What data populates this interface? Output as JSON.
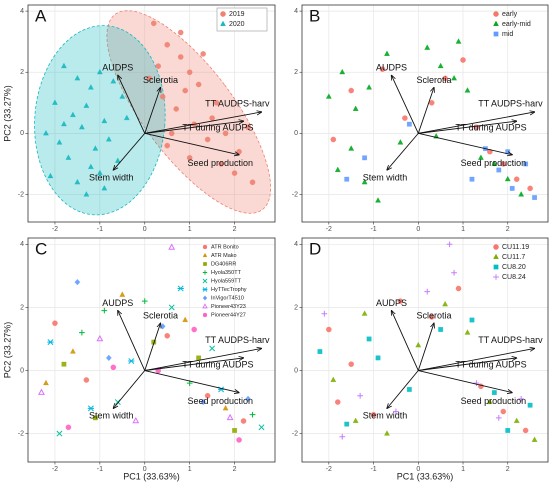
{
  "chart_data": [
    {
      "type": "scatter",
      "label": "A",
      "ylabel": "PC2 (33.27%)",
      "xlim": [
        -2.6,
        2.9
      ],
      "ylim": [
        -2.9,
        4.2
      ],
      "xticks": [
        -2,
        -1,
        0,
        1,
        2
      ],
      "yticks": [
        -2,
        0,
        2,
        4
      ],
      "grid": true,
      "legend": "top-right",
      "legend_box": true,
      "series": [
        {
          "name": "2019",
          "color": "#f08070",
          "marker": "circle",
          "x": [
            0.2,
            0.5,
            0.8,
            1.0,
            1.2,
            0.4,
            0.7,
            1.5,
            1.8,
            2.1,
            0.3,
            0.9,
            1.1,
            1.4,
            0.6,
            1.7,
            2.0,
            2.4,
            0.1,
            0.8,
            1.3,
            1.6,
            0.5,
            1.0,
            2.3
          ],
          "y": [
            3.6,
            2.9,
            2.5,
            2.0,
            1.6,
            1.2,
            0.8,
            0.5,
            0.0,
            -0.6,
            2.2,
            1.4,
            0.3,
            -0.2,
            0.0,
            -1.0,
            -1.3,
            -1.6,
            1.8,
            3.3,
            2.6,
            1.0,
            -0.4,
            -0.8,
            0.2
          ],
          "ellipse": {
            "cx": 0.98,
            "cy": 0.7,
            "rx": 1.0,
            "ry": 4.0,
            "angle": -37
          }
        },
        {
          "name": "2020",
          "color": "#16b8c0",
          "marker": "triangle",
          "x": [
            -1.8,
            -1.5,
            -1.2,
            -1.0,
            -0.7,
            -2.0,
            -1.6,
            -1.3,
            -0.9,
            -0.5,
            -2.2,
            -1.9,
            -1.4,
            -1.1,
            -0.8,
            -1.7,
            -1.2,
            -0.6,
            -2.1,
            -1.5,
            -1.0,
            -0.4,
            -1.3,
            -1.8,
            -0.9
          ],
          "y": [
            2.2,
            1.8,
            1.5,
            2.0,
            1.7,
            1.0,
            0.6,
            0.9,
            0.4,
            1.2,
            0.0,
            -0.3,
            0.2,
            -0.5,
            -0.2,
            -0.8,
            -1.1,
            -0.9,
            -1.4,
            -1.6,
            -1.3,
            0.5,
            -2.0,
            0.3,
            -1.8
          ],
          "ellipse": {
            "cx": -1.0,
            "cy": 0.43,
            "rx": 1.45,
            "ry": 3.1,
            "angle": 4
          }
        }
      ],
      "arrows": [
        {
          "label": "AUDPS",
          "x": -0.6,
          "y": 1.9
        },
        {
          "label": "Sclerotia",
          "x": 0.35,
          "y": 1.5
        },
        {
          "label": "TT AUDPS-harv",
          "x": 2.6,
          "y": 0.7
        },
        {
          "label": "TT during AUDPS",
          "x": 2.2,
          "y": 0.4
        },
        {
          "label": "Seed production",
          "x": 2.1,
          "y": -0.7
        },
        {
          "label": "Stem width",
          "x": -0.7,
          "y": -1.2
        }
      ]
    },
    {
      "type": "scatter",
      "label": "B",
      "xlim": [
        -2.6,
        2.9
      ],
      "ylim": [
        -2.9,
        4.2
      ],
      "xticks": [
        -2,
        -1,
        0,
        1,
        2
      ],
      "yticks": [
        -2,
        0,
        2,
        4
      ],
      "grid": true,
      "legend": "top-right",
      "legend_box": false,
      "series": [
        {
          "name": "early",
          "color": "#f8766d",
          "marker": "circle",
          "x": [
            -1.5,
            -0.8,
            0.3,
            1.0,
            1.6,
            2.2,
            -1.9,
            0.6,
            1.9,
            2.5,
            -0.3,
            1.3
          ],
          "y": [
            1.4,
            2.1,
            1.0,
            2.4,
            -0.6,
            -1.5,
            -0.2,
            1.8,
            -1.0,
            -1.8,
            0.5,
            0.2
          ]
        },
        {
          "name": "early-mid",
          "color": "#00a81e",
          "marker": "triangle",
          "x": [
            -2.0,
            -1.7,
            -1.4,
            -1.1,
            -0.7,
            -0.4,
            0.2,
            0.5,
            0.8,
            1.1,
            1.4,
            1.7,
            2.0,
            2.3,
            -1.8,
            -1.2,
            -0.9,
            -1.5,
            0.9,
            0.4
          ],
          "y": [
            1.2,
            2.0,
            0.8,
            1.5,
            2.6,
            -0.3,
            2.8,
            2.2,
            1.8,
            1.4,
            -0.8,
            -1.0,
            -1.5,
            -2.0,
            -1.2,
            -1.6,
            -2.2,
            -0.5,
            3.0,
            -0.1
          ]
        },
        {
          "name": "mid",
          "color": "#619cff",
          "marker": "square",
          "x": [
            -1.6,
            -1.2,
            1.5,
            1.8,
            2.1,
            2.4,
            2.6,
            -0.2,
            1.2,
            2.0
          ],
          "y": [
            -1.5,
            -0.8,
            -0.5,
            -1.2,
            -1.8,
            -1.0,
            -2.1,
            0.3,
            -1.5,
            -0.6
          ]
        }
      ],
      "arrows": [
        {
          "label": "AUDPS",
          "x": -0.6,
          "y": 1.9
        },
        {
          "label": "Sclerotia",
          "x": 0.35,
          "y": 1.5
        },
        {
          "label": "TT AUDPS-harv",
          "x": 2.6,
          "y": 0.7
        },
        {
          "label": "TT during AUDPS",
          "x": 2.2,
          "y": 0.4
        },
        {
          "label": "Seed production",
          "x": 2.1,
          "y": -0.7
        },
        {
          "label": "Stem width",
          "x": -0.7,
          "y": -1.2
        }
      ]
    },
    {
      "type": "scatter",
      "label": "C",
      "xlabel": "PC1 (33.63%)",
      "ylabel": "PC2 (33.27%)",
      "xlim": [
        -2.6,
        2.9
      ],
      "ylim": [
        -2.9,
        4.2
      ],
      "xticks": [
        -2,
        -1,
        0,
        1,
        2
      ],
      "yticks": [
        -2,
        0,
        2,
        4
      ],
      "grid": true,
      "legend": "top-right",
      "legend_box": false,
      "series": [
        {
          "name": "ATR Bonito",
          "color": "#f8766d",
          "marker": "circle",
          "x": [
            -2.0,
            -1.3,
            0.5,
            1.4,
            2.2
          ],
          "y": [
            1.5,
            -0.3,
            1.1,
            -0.8,
            -1.6
          ]
        },
        {
          "name": "ATR Mako",
          "color": "#d39200",
          "marker": "triangle",
          "x": [
            -1.6,
            -0.5,
            0.9,
            1.8,
            -2.2
          ],
          "y": [
            0.6,
            2.4,
            1.6,
            -1.2,
            -0.4
          ]
        },
        {
          "name": "DG406RR",
          "color": "#93aa00",
          "marker": "square",
          "x": [
            -1.1,
            0.2,
            1.2,
            2.0,
            -1.8
          ],
          "y": [
            -1.5,
            0.9,
            0.4,
            -1.9,
            0.2
          ]
        },
        {
          "name": "Hyola350TT",
          "color": "#00ba38",
          "marker": "plus",
          "x": [
            -0.9,
            0.0,
            1.0,
            2.4,
            -1.4
          ],
          "y": [
            1.9,
            2.2,
            -0.4,
            -1.4,
            1.2
          ]
        },
        {
          "name": "Hyola559TT",
          "color": "#00c19f",
          "marker": "cross",
          "x": [
            -1.9,
            -0.6,
            1.5,
            2.6,
            0.6
          ],
          "y": [
            -2.0,
            -1.0,
            0.7,
            -1.8,
            2.0
          ]
        },
        {
          "name": "HyTTecTrophy",
          "color": "#00b9e3",
          "marker": "star",
          "x": [
            -2.1,
            -0.3,
            0.8,
            1.7,
            -1.2
          ],
          "y": [
            0.9,
            0.3,
            2.6,
            -0.6,
            -1.2
          ]
        },
        {
          "name": "InVigorT4510",
          "color": "#619cff",
          "marker": "diamond",
          "x": [
            -1.5,
            0.4,
            1.3,
            2.3,
            -0.8
          ],
          "y": [
            2.8,
            1.4,
            -1.0,
            -0.9,
            0.4
          ]
        },
        {
          "name": "Pioneer43Y23",
          "color": "#db72fb",
          "marker": "triangle-open",
          "x": [
            -2.3,
            -1.0,
            0.6,
            1.9,
            -0.2
          ],
          "y": [
            -0.7,
            1.0,
            3.9,
            -1.5,
            -1.6
          ]
        },
        {
          "name": "Pioneer44Y27",
          "color": "#ff61c3",
          "marker": "circle",
          "x": [
            -1.7,
            -0.7,
            1.1,
            2.1,
            0.3
          ],
          "y": [
            -1.8,
            0.1,
            1.3,
            -2.2,
            0.0
          ]
        }
      ],
      "arrows": [
        {
          "label": "AUDPS",
          "x": -0.6,
          "y": 1.9
        },
        {
          "label": "Sclerotia",
          "x": 0.35,
          "y": 1.5
        },
        {
          "label": "TT AUDPS-harv",
          "x": 2.6,
          "y": 0.7
        },
        {
          "label": "TT during AUDPS",
          "x": 2.2,
          "y": 0.4
        },
        {
          "label": "Seed production",
          "x": 2.1,
          "y": -0.7
        },
        {
          "label": "Stem width",
          "x": -0.7,
          "y": -1.2
        }
      ]
    },
    {
      "type": "scatter",
      "label": "D",
      "xlabel": "PC1 (33.63%)",
      "xlim": [
        -2.6,
        2.9
      ],
      "ylim": [
        -2.9,
        4.2
      ],
      "xticks": [
        -2,
        -1,
        0,
        1,
        2
      ],
      "yticks": [
        -2,
        0,
        2,
        4
      ],
      "grid": true,
      "legend": "top-right",
      "legend_box": false,
      "series": [
        {
          "name": "CU11.19",
          "color": "#f8766d",
          "marker": "circle",
          "x": [
            -2.0,
            -1.5,
            -1.0,
            -0.4,
            0.3,
            0.9,
            1.4,
            1.9,
            2.4,
            -1.8
          ],
          "y": [
            1.3,
            0.2,
            -1.4,
            2.2,
            1.7,
            2.6,
            -0.5,
            -1.3,
            -1.9,
            -1.0
          ]
        },
        {
          "name": "CU11.7",
          "color": "#7cae00",
          "marker": "triangle",
          "x": [
            -1.9,
            -1.2,
            -0.7,
            0.0,
            0.6,
            1.1,
            1.6,
            2.2,
            2.6,
            -1.4
          ],
          "y": [
            -0.3,
            1.8,
            -2.0,
            0.8,
            2.1,
            1.2,
            -1.0,
            -1.6,
            -2.2,
            -1.6
          ]
        },
        {
          "name": "CU8.20",
          "color": "#00bfc4",
          "marker": "square",
          "x": [
            -2.2,
            -1.6,
            -0.9,
            -0.2,
            0.5,
            1.2,
            1.7,
            2.0,
            2.5,
            -1.1
          ],
          "y": [
            0.6,
            -1.7,
            0.4,
            -0.6,
            1.3,
            1.6,
            -0.7,
            -1.9,
            -1.1,
            1.0
          ]
        },
        {
          "name": "CU8.24",
          "color": "#c77cff",
          "marker": "plus",
          "x": [
            -2.1,
            -1.3,
            -0.5,
            0.2,
            0.8,
            1.3,
            1.8,
            2.3,
            -1.7,
            0.7
          ],
          "y": [
            1.8,
            -0.8,
            -1.3,
            2.5,
            3.1,
            -0.4,
            -1.5,
            -0.9,
            -2.1,
            4.0
          ]
        }
      ],
      "arrows": [
        {
          "label": "AUDPS",
          "x": -0.6,
          "y": 1.9
        },
        {
          "label": "Sclerotia",
          "x": 0.35,
          "y": 1.5
        },
        {
          "label": "TT AUDPS-harv",
          "x": 2.6,
          "y": 0.7
        },
        {
          "label": "TT during AUDPS",
          "x": 2.2,
          "y": 0.4
        },
        {
          "label": "Seed production",
          "x": 2.1,
          "y": -0.7
        },
        {
          "label": "Stem width",
          "x": -0.7,
          "y": -1.2
        }
      ]
    }
  ]
}
